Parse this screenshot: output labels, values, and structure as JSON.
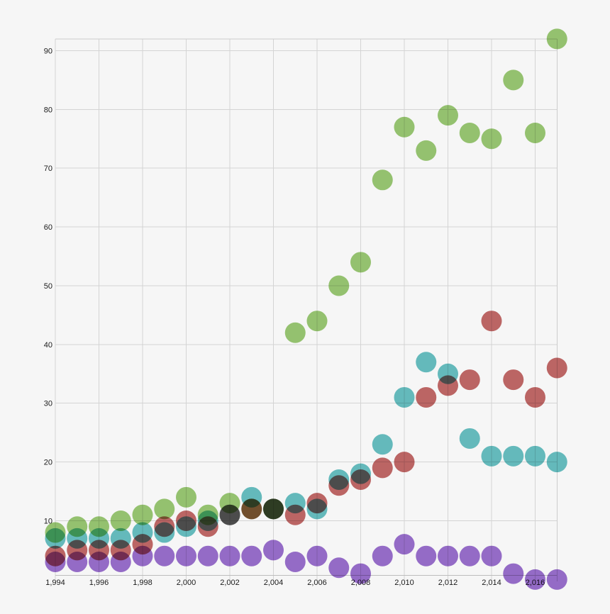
{
  "page": {
    "background_color": "#f6f6f6",
    "title": "",
    "legend": "none"
  },
  "chart_data": {
    "type": "scatter",
    "title": "",
    "xlabel": "",
    "ylabel": "",
    "xlim": [
      1994,
      2017
    ],
    "ylim": [
      0,
      92
    ],
    "grid": true,
    "legend_position": "none",
    "marker_radius": 14.5,
    "x": [
      1994,
      1995,
      1996,
      1997,
      1998,
      1999,
      2000,
      2001,
      2002,
      2003,
      2004,
      2005,
      2006,
      2007,
      2008,
      2009,
      2010,
      2011,
      2012,
      2013,
      2014,
      2015,
      2016,
      2017
    ],
    "series": [
      {
        "name": "red-series",
        "color": "#c26968",
        "values": [
          4,
          5,
          5,
          5,
          6,
          9,
          10,
          9,
          11,
          12,
          12,
          11,
          13,
          16,
          17,
          19,
          20,
          31,
          33,
          34,
          44,
          34,
          31,
          36
        ]
      },
      {
        "name": "green-series",
        "color": "#9ac873",
        "values": [
          8,
          9,
          9,
          10,
          11,
          12,
          14,
          11,
          13,
          12,
          12,
          42,
          44,
          50,
          54,
          68,
          77,
          73,
          79,
          76,
          75,
          85,
          76,
          92
        ]
      },
      {
        "name": "teal-series",
        "color": "#68c0c2",
        "values": [
          7,
          7,
          7,
          7,
          8,
          8,
          9,
          10,
          11,
          14,
          12,
          13,
          12,
          17,
          18,
          23,
          31,
          37,
          35,
          24,
          21,
          21,
          21,
          20
        ]
      },
      {
        "name": "purple-series",
        "color": "#9a6fce",
        "values": [
          3,
          3,
          3,
          3,
          4,
          4,
          4,
          4,
          4,
          4,
          5,
          3,
          4,
          2,
          1,
          4,
          6,
          4,
          4,
          4,
          4,
          1,
          0,
          0
        ]
      }
    ],
    "draw_order": [
      "red-series",
      "green-series",
      "teal-series",
      "purple-series"
    ],
    "x_ticks": [
      {
        "year": 1994,
        "label": "1,994"
      },
      {
        "year": 1996,
        "label": "1,996"
      },
      {
        "year": 1998,
        "label": "1,998"
      },
      {
        "year": 2000,
        "label": "2,000"
      },
      {
        "year": 2002,
        "label": "2,002"
      },
      {
        "year": 2004,
        "label": "2,004"
      },
      {
        "year": 2006,
        "label": "2,006"
      },
      {
        "year": 2008,
        "label": "2,008"
      },
      {
        "year": 2010,
        "label": "2,010"
      },
      {
        "year": 2012,
        "label": "2,012"
      },
      {
        "year": 2014,
        "label": "2,014"
      },
      {
        "year": 2016,
        "label": "2,016"
      }
    ],
    "y_ticks": [
      {
        "value": 10,
        "label": "10"
      },
      {
        "value": 20,
        "label": "20"
      },
      {
        "value": 30,
        "label": "30"
      },
      {
        "value": 40,
        "label": "40"
      },
      {
        "value": 50,
        "label": "50"
      },
      {
        "value": 60,
        "label": "60"
      },
      {
        "value": 70,
        "label": "70"
      },
      {
        "value": 80,
        "label": "80"
      },
      {
        "value": 90,
        "label": "90"
      }
    ]
  }
}
